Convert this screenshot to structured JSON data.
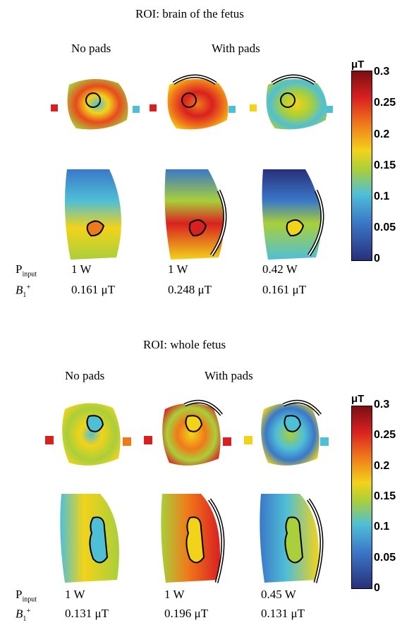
{
  "sections": [
    {
      "title": "ROI: brain of the fetus",
      "col_no_pads": "No pads",
      "col_with_pads": "With pads",
      "p_input_label": "P",
      "p_input_sub": "input",
      "b1_label": "B",
      "b1_sub": "1",
      "b1_sup": "+",
      "p_values": [
        "1 W",
        "1 W",
        "0.42 W"
      ],
      "b1_values": [
        "0.161 μT",
        "0.248 μT",
        "0.161 μT"
      ]
    },
    {
      "title": "ROI: whole fetus",
      "col_no_pads": "No pads",
      "col_with_pads": "With pads",
      "p_input_label": "P",
      "p_input_sub": "input",
      "b1_label": "B",
      "b1_sub": "1",
      "b1_sup": "+",
      "p_values": [
        "1 W",
        "1 W",
        "0.45 W"
      ],
      "b1_values": [
        "0.131 μT",
        "0.196 μT",
        "0.131 μT"
      ]
    }
  ],
  "colorbar": {
    "unit": "μT",
    "ticks": [
      "0.3",
      "0.25",
      "0.2",
      "0.15",
      "0.1",
      "0.05",
      "0"
    ],
    "colors": [
      "#7a0f12",
      "#d92020",
      "#f07a1a",
      "#f2d31a",
      "#a9cf3a",
      "#4fbfd6",
      "#3a78c8",
      "#28307a"
    ]
  }
}
